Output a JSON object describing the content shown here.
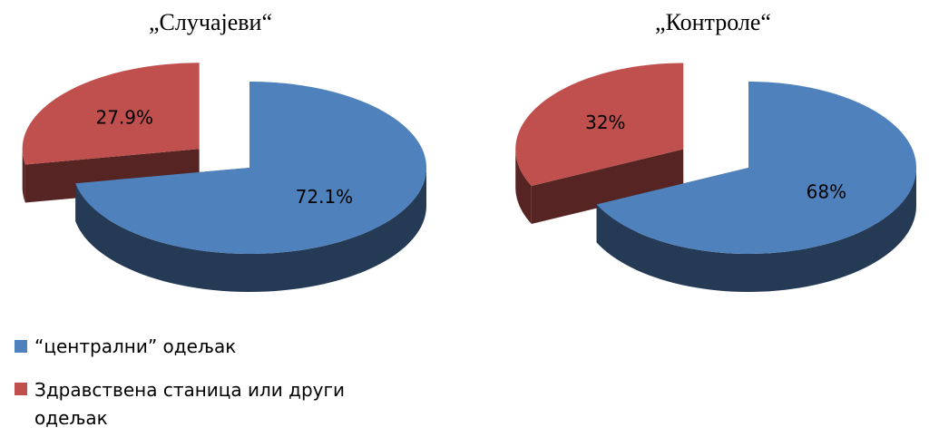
{
  "chart_data": [
    {
      "type": "pie",
      "title": "„Случајеви“",
      "categories": [
        "“централни” одељак",
        "Здравствена станица или други одељак"
      ],
      "values": [
        72.1,
        27.9
      ],
      "value_labels": [
        "72.1%",
        "27.9%"
      ],
      "colors": [
        "#4f81bd",
        "#c0504d"
      ]
    },
    {
      "type": "pie",
      "title": "„Контроле“",
      "values": [
        68,
        32
      ],
      "value_labels": [
        "68%",
        "32%"
      ],
      "colors": [
        "#4f81bd",
        "#c0504d"
      ]
    }
  ]
}
